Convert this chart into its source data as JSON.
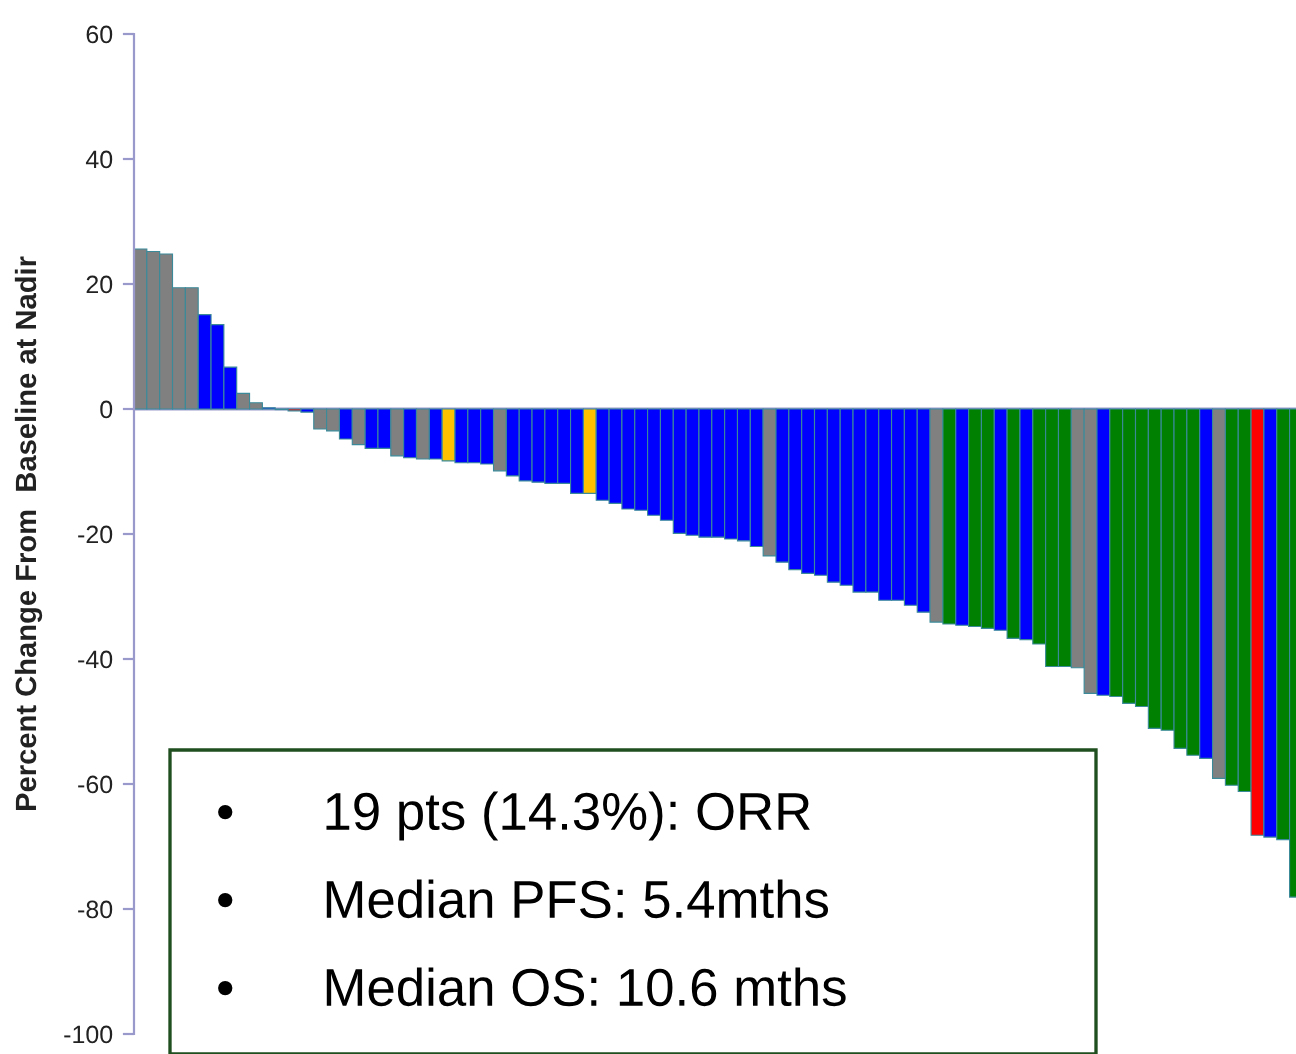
{
  "chart_data": {
    "type": "bar",
    "ylabel": "Percent Change From  Baseline at Nadir",
    "categories": [
      null,
      null,
      null,
      null,
      null,
      null,
      null,
      null,
      null,
      null,
      null,
      null,
      null,
      null,
      null,
      null,
      null,
      null,
      null,
      null,
      null,
      null,
      null,
      null,
      null,
      null,
      null,
      null,
      null,
      null,
      null,
      null,
      null,
      null,
      null,
      null,
      null,
      null,
      null,
      null,
      null,
      null,
      null,
      null,
      null,
      null,
      null,
      null,
      null,
      null,
      null,
      null,
      null,
      null,
      null,
      null,
      null,
      null,
      null,
      null,
      null,
      null,
      null,
      null,
      null,
      null,
      null,
      null,
      null,
      null,
      null,
      null,
      null,
      null,
      null,
      null,
      null,
      null,
      null,
      null,
      null,
      null,
      null,
      null,
      null,
      null,
      null,
      null,
      null,
      null,
      null
    ],
    "values": [
      25.6,
      25.2,
      24.8,
      19.4,
      19.4,
      15.1,
      13.5,
      6.7,
      2.5,
      1,
      0.2,
      -0.1,
      -0.3,
      -0.5,
      -3.2,
      -3.5,
      -4.8,
      -5.7,
      -6.3,
      -6.3,
      -7.5,
      -7.8,
      -8,
      -8,
      -8.3,
      -8.6,
      -8.6,
      -8.8,
      -9.9,
      -10.7,
      -11.5,
      -11.7,
      -11.9,
      -11.9,
      -13.5,
      -13.5,
      -14.6,
      -15.1,
      -16,
      -16.2,
      -17,
      -17.8,
      -19.9,
      -20.2,
      -20.5,
      -20.5,
      -20.8,
      -21.1,
      -22,
      -23.5,
      -24.5,
      -25.7,
      -26.3,
      -26.6,
      -27.7,
      -28.2,
      -29.3,
      -29.3,
      -30.6,
      -30.6,
      -31.4,
      -32.5,
      -34.1,
      -34.4,
      -34.6,
      -34.8,
      -35.1,
      -35.4,
      -36.7,
      -36.9,
      -37.6,
      -41.2,
      -41.2,
      -41.4,
      -45.5,
      -45.8,
      -46,
      -47.1,
      -47.6,
      -51.1,
      -51.4,
      -54.3,
      -55.4,
      -55.9,
      -59.1,
      -60.2,
      -61.2,
      -68.2,
      -68.5,
      -68.9,
      -78.1
    ],
    "colors": [
      "#808080",
      "#808080",
      "#808080",
      "#808080",
      "#808080",
      "#0000ff",
      "#0000ff",
      "#0000ff",
      "#808080",
      "#808080",
      "#0000ff",
      "#0000ff",
      "#ff0000",
      "#0000ff",
      "#808080",
      "#808080",
      "#0000ff",
      "#808080",
      "#0000ff",
      "#0000ff",
      "#808080",
      "#0000ff",
      "#808080",
      "#0000ff",
      "#ffc000",
      "#0000ff",
      "#0000ff",
      "#0000ff",
      "#808080",
      "#0000ff",
      "#0000ff",
      "#0000ff",
      "#0000ff",
      "#0000ff",
      "#0000ff",
      "#ffc000",
      "#0000ff",
      "#0000ff",
      "#0000ff",
      "#0000ff",
      "#0000ff",
      "#0000ff",
      "#0000ff",
      "#0000ff",
      "#0000ff",
      "#0000ff",
      "#0000ff",
      "#0000ff",
      "#0000ff",
      "#808080",
      "#0000ff",
      "#0000ff",
      "#0000ff",
      "#0000ff",
      "#0000ff",
      "#0000ff",
      "#0000ff",
      "#0000ff",
      "#0000ff",
      "#0000ff",
      "#0000ff",
      "#0000ff",
      "#808080",
      "#008000",
      "#0000ff",
      "#008000",
      "#008000",
      "#0000ff",
      "#008000",
      "#0000ff",
      "#008000",
      "#008000",
      "#008000",
      "#808080",
      "#808080",
      "#0000ff",
      "#008000",
      "#008000",
      "#008000",
      "#008000",
      "#008000",
      "#008000",
      "#008000",
      "#0000ff",
      "#808080",
      "#008000",
      "#008000",
      "#ff0000",
      "#0000ff",
      "#008000",
      "#008000"
    ],
    "ylim": [
      -100,
      60
    ],
    "yticks": [
      -100,
      -80,
      -60,
      -40,
      -20,
      0,
      20,
      40,
      60
    ],
    "tick_labels": "y",
    "ref_lines": [
      {
        "axis": "y",
        "value": 0,
        "color": "#9999cc"
      }
    ],
    "annotations": [
      "•      19 pts (14.3%): ORR",
      "•      Median PFS: 5.4mths",
      "•      Median OS: 10.6 mths"
    ]
  }
}
